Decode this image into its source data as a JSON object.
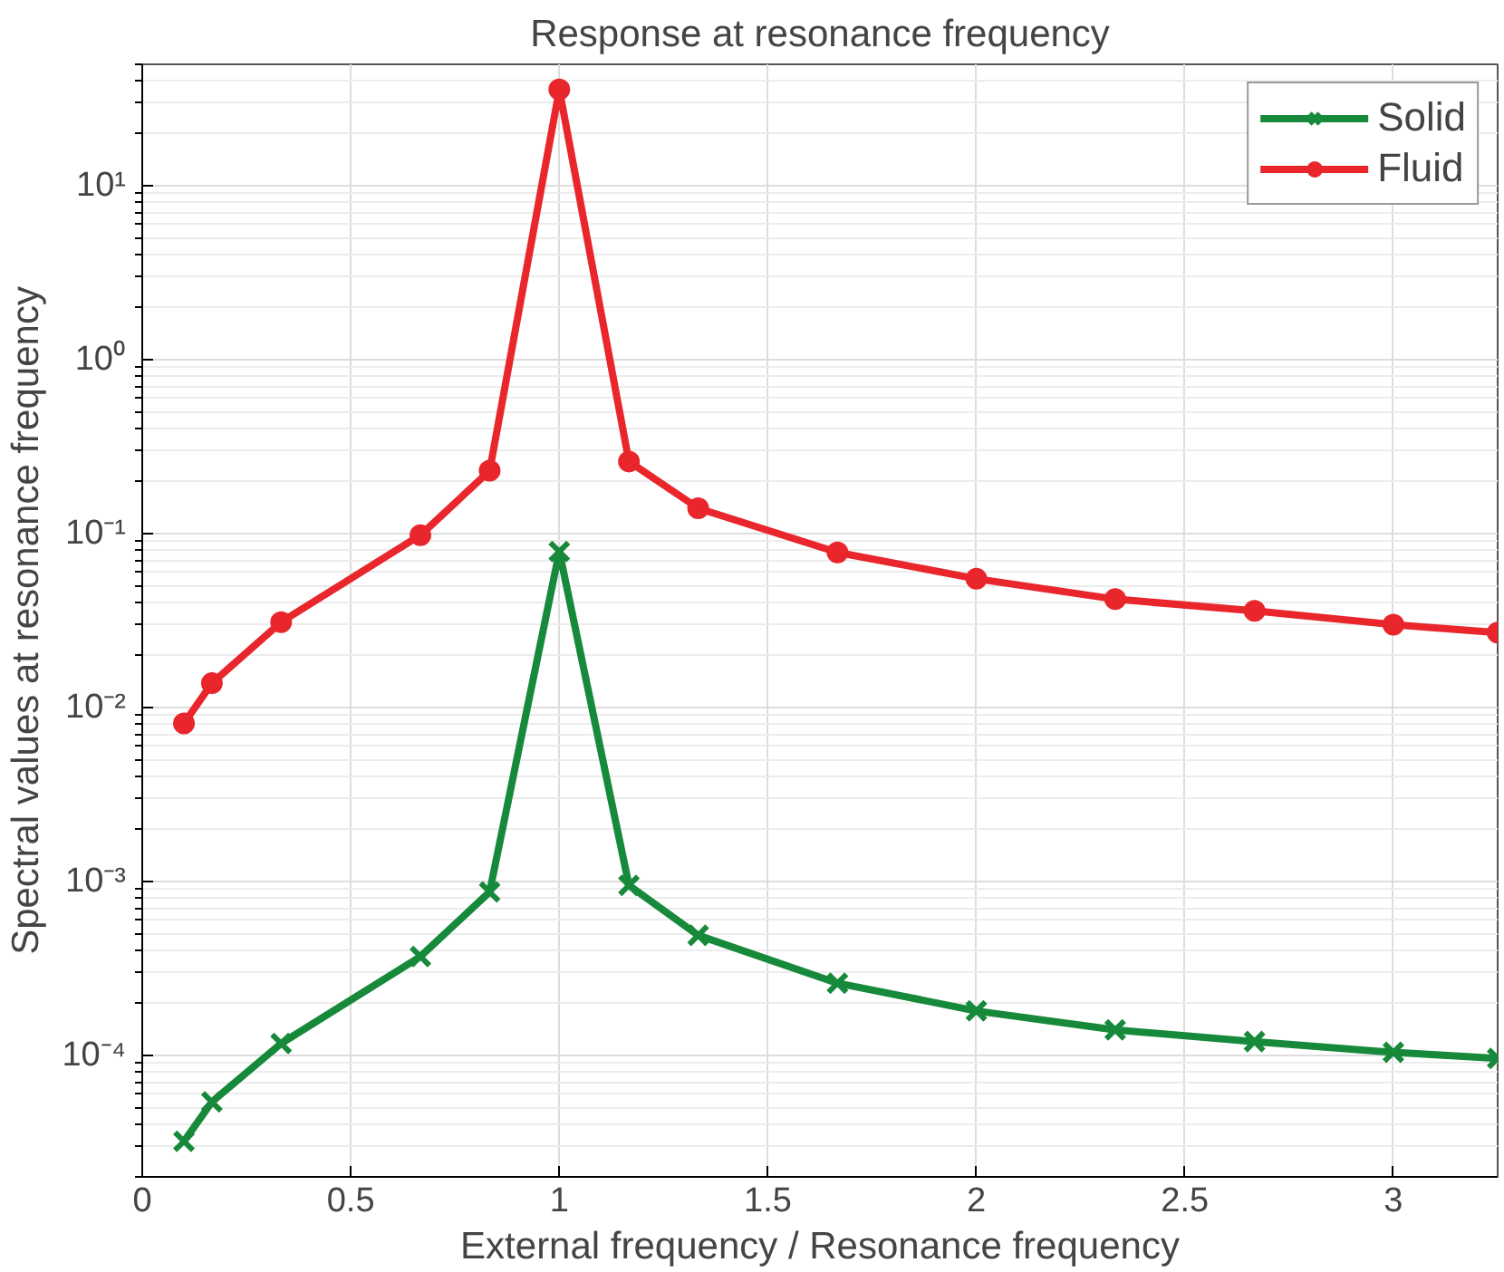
{
  "chart_data": {
    "type": "line",
    "title": "Response at resonance frequency",
    "xlabel": "External frequency / Resonance frequency",
    "ylabel": "Spectral values at resonance frequency",
    "x": [
      0.1,
      0.167,
      0.333,
      0.667,
      0.833,
      1.0,
      1.167,
      1.333,
      1.667,
      2.0,
      2.333,
      2.667,
      3.0,
      3.25
    ],
    "series": [
      {
        "name": "Solid",
        "color": "#17893a",
        "marker": "cross",
        "values": [
          3.2e-05,
          5.4e-05,
          0.000117,
          0.00037,
          0.00087,
          0.079,
          0.00095,
          0.00049,
          0.00026,
          0.00018,
          0.00014,
          0.00012,
          0.000104,
          9.6e-05
        ]
      },
      {
        "name": "Fluid",
        "color": "#e8262b",
        "marker": "circle",
        "values": [
          0.0081,
          0.0138,
          0.031,
          0.098,
          0.23,
          35.8,
          0.26,
          0.14,
          0.078,
          0.055,
          0.042,
          0.036,
          0.03,
          0.027
        ]
      }
    ],
    "log": "y",
    "xlim": [
      0,
      3.25
    ],
    "ylim": [
      2e-05,
      50
    ],
    "xticks": [
      0,
      0.5,
      1,
      1.5,
      2,
      2.5,
      3
    ],
    "yticks": [
      {
        "value": 0.0001,
        "label": "10⁻⁴"
      },
      {
        "value": 0.001,
        "label": "10⁻³"
      },
      {
        "value": 0.01,
        "label": "10⁻²"
      },
      {
        "value": 0.1,
        "label": "10⁻¹"
      },
      {
        "value": 1,
        "label": "10⁰"
      },
      {
        "value": 10,
        "label": "10¹"
      }
    ],
    "grid": true,
    "legend": "top right",
    "line_style": "solid"
  }
}
